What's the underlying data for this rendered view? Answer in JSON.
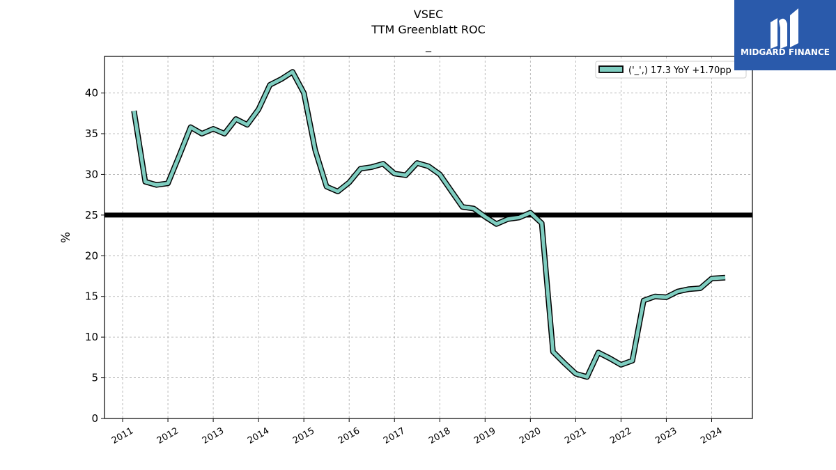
{
  "chart_data": {
    "type": "line",
    "title": "VSEC",
    "subtitle": "TTM Greenblatt ROC",
    "subsubtitle": "_",
    "ylabel": "%",
    "xlabel": "",
    "ylim": [
      0,
      44.5
    ],
    "yticks": [
      0,
      5,
      10,
      15,
      20,
      25,
      30,
      35,
      40
    ],
    "xlim": [
      2010.6,
      2024.9
    ],
    "xticks": [
      "2011",
      "2012",
      "2013",
      "2014",
      "2015",
      "2016",
      "2017",
      "2018",
      "2019",
      "2020",
      "2021",
      "2022",
      "2023",
      "2024"
    ],
    "grid": true,
    "legend_position": "top-right",
    "reference_line": 25,
    "series": [
      {
        "name": "('_',) 17.3 YoY +1.70pp",
        "color": "#7ecdc0",
        "x": [
          2011.25,
          2011.5,
          2011.75,
          2012.0,
          2012.25,
          2012.5,
          2012.75,
          2013.0,
          2013.25,
          2013.5,
          2013.75,
          2014.0,
          2014.25,
          2014.5,
          2014.75,
          2015.0,
          2015.25,
          2015.5,
          2015.75,
          2016.0,
          2016.25,
          2016.5,
          2016.75,
          2017.0,
          2017.25,
          2017.5,
          2017.75,
          2018.0,
          2018.25,
          2018.5,
          2018.75,
          2019.0,
          2019.25,
          2019.5,
          2019.75,
          2020.0,
          2020.25,
          2020.5,
          2020.75,
          2021.0,
          2021.25,
          2021.5,
          2021.75,
          2022.0,
          2022.25,
          2022.5,
          2022.75,
          2023.0,
          2023.25,
          2023.5,
          2023.75,
          2024.0,
          2024.3
        ],
        "values": [
          37.8,
          29.1,
          28.7,
          28.9,
          32.3,
          35.8,
          35.0,
          35.6,
          35.0,
          36.8,
          36.1,
          38.0,
          41.0,
          41.7,
          42.6,
          40.0,
          33.0,
          28.5,
          27.9,
          29.0,
          30.7,
          30.9,
          31.3,
          30.1,
          29.9,
          31.4,
          31.0,
          30.0,
          28.0,
          26.0,
          25.8,
          24.8,
          23.9,
          24.5,
          24.7,
          25.3,
          24.0,
          8.2,
          6.8,
          5.5,
          5.1,
          8.1,
          7.4,
          6.6,
          7.1,
          14.5,
          15.0,
          14.9,
          15.6,
          15.9,
          16.0,
          17.2,
          17.3
        ]
      }
    ]
  },
  "logo": {
    "text": "MIDGARD FINANCE",
    "color": "#2a5aab"
  }
}
